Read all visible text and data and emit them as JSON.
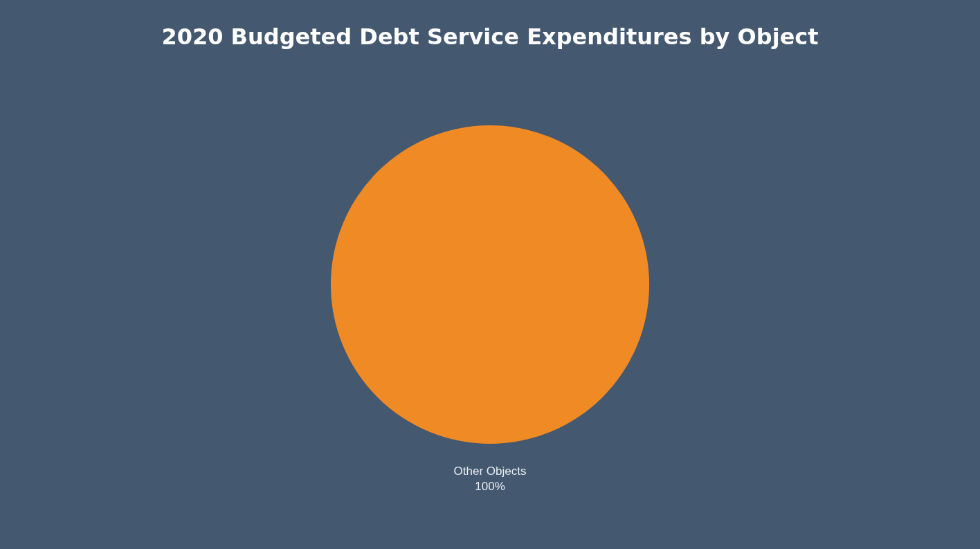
{
  "chart_data": {
    "type": "pie",
    "title": "2020 Budgeted Debt Service Expenditures by Object",
    "categories": [
      "Other Objects"
    ],
    "values": [
      100
    ],
    "colors": [
      "#f08a24"
    ],
    "value_labels": [
      "100%"
    ]
  }
}
